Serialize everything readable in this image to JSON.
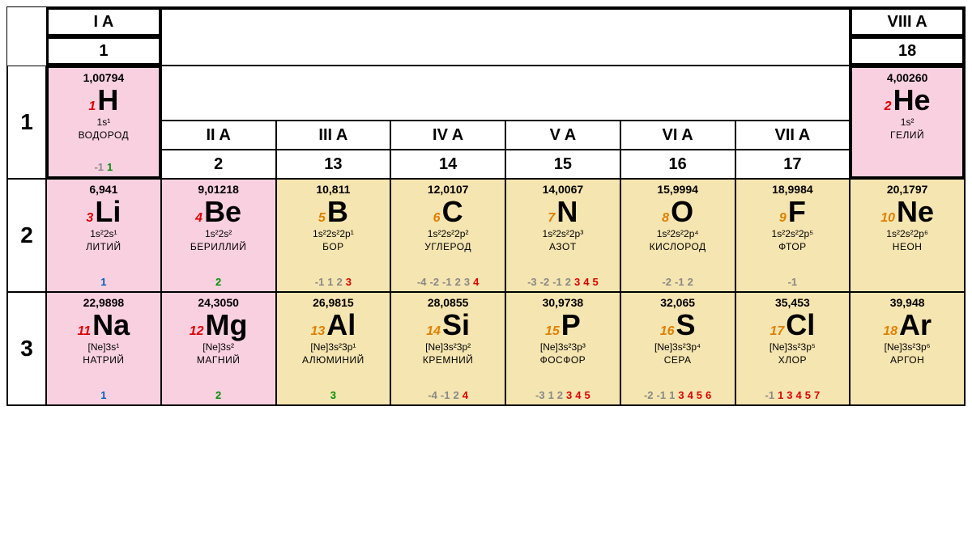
{
  "colors": {
    "pink": "#f8d0e0",
    "yellow": "#f5e5b0",
    "num_red": "#d00",
    "num_orange": "#e08000",
    "ox_gray": "#888",
    "ox_blue": "#0060c0",
    "ox_green": "#009000",
    "ox_red": "#d00"
  },
  "groups_top": {
    "g1": {
      "roman": "I A",
      "num": "1"
    },
    "g8": {
      "roman": "VIII A",
      "num": "18"
    }
  },
  "groups_mid": [
    {
      "roman": "II A",
      "num": "2"
    },
    {
      "roman": "III A",
      "num": "13"
    },
    {
      "roman": "IV A",
      "num": "14"
    },
    {
      "roman": "V A",
      "num": "15"
    },
    {
      "roman": "VI A",
      "num": "16"
    },
    {
      "roman": "VII A",
      "num": "17"
    }
  ],
  "periods": [
    "1",
    "2",
    "3"
  ],
  "elements": {
    "H": {
      "mass": "1,00794",
      "num": "1",
      "sym": "H",
      "econf": "1s¹",
      "name": "ВОДОРОД",
      "ox": [
        {
          "v": "-1",
          "c": "gray"
        },
        {
          "v": "1",
          "c": "green"
        }
      ],
      "bg": "pink",
      "numc": "red"
    },
    "He": {
      "mass": "4,00260",
      "num": "2",
      "sym": "He",
      "econf": "1s²",
      "name": "ГЕЛИЙ",
      "ox": [],
      "bg": "pink",
      "numc": "red"
    },
    "Li": {
      "mass": "6,941",
      "num": "3",
      "sym": "Li",
      "econf": "1s²2s¹",
      "name": "ЛИТИЙ",
      "ox": [
        {
          "v": "1",
          "c": "blue"
        }
      ],
      "bg": "pink",
      "numc": "red"
    },
    "Be": {
      "mass": "9,01218",
      "num": "4",
      "sym": "Be",
      "econf": "1s²2s²",
      "name": "БЕРИЛЛИЙ",
      "ox": [
        {
          "v": "2",
          "c": "green"
        }
      ],
      "bg": "pink",
      "numc": "red"
    },
    "B": {
      "mass": "10,811",
      "num": "5",
      "sym": "B",
      "econf": "1s²2s²2p¹",
      "name": "БОР",
      "ox": [
        {
          "v": "-1",
          "c": "gray"
        },
        {
          "v": "1",
          "c": "gray"
        },
        {
          "v": "2",
          "c": "gray"
        },
        {
          "v": "3",
          "c": "red"
        }
      ],
      "bg": "yellow",
      "numc": "orange"
    },
    "C": {
      "mass": "12,0107",
      "num": "6",
      "sym": "C",
      "econf": "1s²2s²2p²",
      "name": "УГЛЕРОД",
      "ox": [
        {
          "v": "-4",
          "c": "gray"
        },
        {
          "v": "-2",
          "c": "gray"
        },
        {
          "v": "-1",
          "c": "gray"
        },
        {
          "v": "2",
          "c": "gray"
        },
        {
          "v": "3",
          "c": "gray"
        },
        {
          "v": "4",
          "c": "red"
        }
      ],
      "bg": "yellow",
      "numc": "orange"
    },
    "N": {
      "mass": "14,0067",
      "num": "7",
      "sym": "N",
      "econf": "1s²2s²2p³",
      "name": "АЗОТ",
      "ox": [
        {
          "v": "-3",
          "c": "gray"
        },
        {
          "v": "-2",
          "c": "gray"
        },
        {
          "v": "-1",
          "c": "gray"
        },
        {
          "v": "2",
          "c": "gray"
        },
        {
          "v": "3",
          "c": "red"
        },
        {
          "v": "4",
          "c": "red"
        },
        {
          "v": "5",
          "c": "red"
        }
      ],
      "bg": "yellow",
      "numc": "orange"
    },
    "O": {
      "mass": "15,9994",
      "num": "8",
      "sym": "O",
      "econf": "1s²2s²2p⁴",
      "name": "КИСЛОРОД",
      "ox": [
        {
          "v": "-2",
          "c": "gray"
        },
        {
          "v": "-1",
          "c": "gray"
        },
        {
          "v": "2",
          "c": "gray"
        }
      ],
      "bg": "yellow",
      "numc": "orange"
    },
    "F": {
      "mass": "18,9984",
      "num": "9",
      "sym": "F",
      "econf": "1s²2s²2p⁵",
      "name": "ФТОР",
      "ox": [
        {
          "v": "-1",
          "c": "gray"
        }
      ],
      "bg": "yellow",
      "numc": "orange"
    },
    "Ne": {
      "mass": "20,1797",
      "num": "10",
      "sym": "Ne",
      "econf": "1s²2s²2p⁶",
      "name": "НЕОН",
      "ox": [],
      "bg": "yellow",
      "numc": "orange"
    },
    "Na": {
      "mass": "22,9898",
      "num": "11",
      "sym": "Na",
      "econf": "[Ne]3s¹",
      "name": "НАТРИЙ",
      "ox": [
        {
          "v": "1",
          "c": "blue"
        }
      ],
      "bg": "pink",
      "numc": "red"
    },
    "Mg": {
      "mass": "24,3050",
      "num": "12",
      "sym": "Mg",
      "econf": "[Ne]3s²",
      "name": "МАГНИЙ",
      "ox": [
        {
          "v": "2",
          "c": "green"
        }
      ],
      "bg": "pink",
      "numc": "red"
    },
    "Al": {
      "mass": "26,9815",
      "num": "13",
      "sym": "Al",
      "econf": "[Ne]3s²3p¹",
      "name": "АЛЮМИНИЙ",
      "ox": [
        {
          "v": "3",
          "c": "green"
        }
      ],
      "bg": "yellow",
      "numc": "orange"
    },
    "Si": {
      "mass": "28,0855",
      "num": "14",
      "sym": "Si",
      "econf": "[Ne]3s²3p²",
      "name": "КРЕМНИЙ",
      "ox": [
        {
          "v": "-4",
          "c": "gray"
        },
        {
          "v": "-1",
          "c": "gray"
        },
        {
          "v": "2",
          "c": "gray"
        },
        {
          "v": "4",
          "c": "red"
        }
      ],
      "bg": "yellow",
      "numc": "orange"
    },
    "P": {
      "mass": "30,9738",
      "num": "15",
      "sym": "P",
      "econf": "[Ne]3s²3p³",
      "name": "ФОСФОР",
      "ox": [
        {
          "v": "-3",
          "c": "gray"
        },
        {
          "v": "1",
          "c": "gray"
        },
        {
          "v": "2",
          "c": "gray"
        },
        {
          "v": "3",
          "c": "red"
        },
        {
          "v": "4",
          "c": "red"
        },
        {
          "v": "5",
          "c": "red"
        }
      ],
      "bg": "yellow",
      "numc": "orange"
    },
    "S": {
      "mass": "32,065",
      "num": "16",
      "sym": "S",
      "econf": "[Ne]3s²3p⁴",
      "name": "СЕРА",
      "ox": [
        {
          "v": "-2",
          "c": "gray"
        },
        {
          "v": "-1",
          "c": "gray"
        },
        {
          "v": "1",
          "c": "gray"
        },
        {
          "v": "3",
          "c": "red"
        },
        {
          "v": "4",
          "c": "red"
        },
        {
          "v": "5",
          "c": "red"
        },
        {
          "v": "6",
          "c": "red"
        }
      ],
      "bg": "yellow",
      "numc": "orange"
    },
    "Cl": {
      "mass": "35,453",
      "num": "17",
      "sym": "Cl",
      "econf": "[Ne]3s²3p⁵",
      "name": "ХЛОР",
      "ox": [
        {
          "v": "-1",
          "c": "gray"
        },
        {
          "v": "1",
          "c": "red"
        },
        {
          "v": "3",
          "c": "red"
        },
        {
          "v": "4",
          "c": "red"
        },
        {
          "v": "5",
          "c": "red"
        },
        {
          "v": "7",
          "c": "red"
        }
      ],
      "bg": "yellow",
      "numc": "orange"
    },
    "Ar": {
      "mass": "39,948",
      "num": "18",
      "sym": "Ar",
      "econf": "[Ne]3s²3p⁶",
      "name": "АРГОН",
      "ox": [],
      "bg": "yellow",
      "numc": "orange"
    }
  }
}
